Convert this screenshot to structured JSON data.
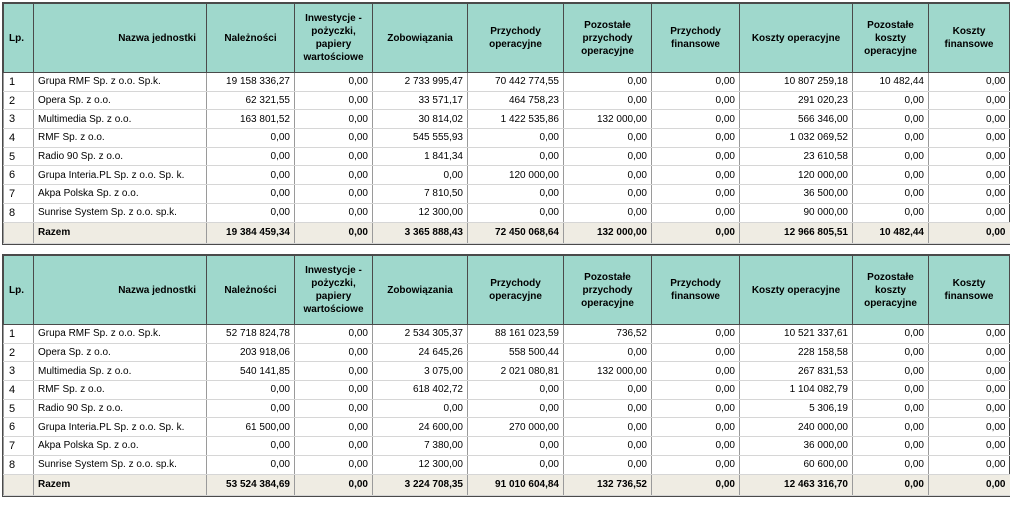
{
  "headers": {
    "lp": "Lp.",
    "name": "Nazwa jednostki",
    "c1": "Należności",
    "c2": "Inwestycje - pożyczki, papiery wartościowe",
    "c3": "Zobowiązania",
    "c4": "Przychody operacyjne",
    "c5": "Pozostałe przychody operacyjne",
    "c6": "Przychody finansowe",
    "c7": "Koszty operacyjne",
    "c8": "Pozostałe koszty operacyjne",
    "c9": "Koszty finansowe"
  },
  "tables": [
    {
      "rows": [
        {
          "lp": "1",
          "name": "Grupa RMF Sp. z o.o. Sp.k.",
          "v": [
            "19 158 336,27",
            "0,00",
            "2 733 995,47",
            "70 442 774,55",
            "0,00",
            "0,00",
            "10 807 259,18",
            "10 482,44",
            "0,00"
          ]
        },
        {
          "lp": "2",
          "name": "Opera Sp. z o.o.",
          "v": [
            "62 321,55",
            "0,00",
            "33 571,17",
            "464 758,23",
            "0,00",
            "0,00",
            "291 020,23",
            "0,00",
            "0,00"
          ]
        },
        {
          "lp": "3",
          "name": "Multimedia Sp. z o.o.",
          "v": [
            "163 801,52",
            "0,00",
            "30 814,02",
            "1 422 535,86",
            "132 000,00",
            "0,00",
            "566 346,00",
            "0,00",
            "0,00"
          ]
        },
        {
          "lp": "4",
          "name": "RMF Sp. z o.o.",
          "v": [
            "0,00",
            "0,00",
            "545 555,93",
            "0,00",
            "0,00",
            "0,00",
            "1 032 069,52",
            "0,00",
            "0,00"
          ]
        },
        {
          "lp": "5",
          "name": "Radio 90 Sp. z o.o.",
          "v": [
            "0,00",
            "0,00",
            "1 841,34",
            "0,00",
            "0,00",
            "0,00",
            "23 610,58",
            "0,00",
            "0,00"
          ]
        },
        {
          "lp": "6",
          "name": "Grupa Interia.PL Sp. z o.o. Sp. k.",
          "v": [
            "0,00",
            "0,00",
            "0,00",
            "120 000,00",
            "0,00",
            "0,00",
            "120 000,00",
            "0,00",
            "0,00"
          ]
        },
        {
          "lp": "7",
          "name": "Akpa Polska Sp. z o.o.",
          "v": [
            "0,00",
            "0,00",
            "7 810,50",
            "0,00",
            "0,00",
            "0,00",
            "36 500,00",
            "0,00",
            "0,00"
          ]
        },
        {
          "lp": "8",
          "name": "Sunrise System Sp. z o.o. sp.k.",
          "v": [
            "0,00",
            "0,00",
            "12 300,00",
            "0,00",
            "0,00",
            "0,00",
            "90 000,00",
            "0,00",
            "0,00"
          ]
        }
      ],
      "total": {
        "label": "Razem",
        "v": [
          "19 384 459,34",
          "0,00",
          "3 365 888,43",
          "72 450 068,64",
          "132 000,00",
          "0,00",
          "12 966 805,51",
          "10 482,44",
          "0,00"
        ]
      }
    },
    {
      "rows": [
        {
          "lp": "1",
          "name": "Grupa RMF Sp. z o.o. Sp.k.",
          "v": [
            "52 718 824,78",
            "0,00",
            "2 534 305,37",
            "88 161 023,59",
            "736,52",
            "0,00",
            "10 521 337,61",
            "0,00",
            "0,00"
          ]
        },
        {
          "lp": "2",
          "name": "Opera Sp. z o.o.",
          "v": [
            "203 918,06",
            "0,00",
            "24 645,26",
            "558 500,44",
            "0,00",
            "0,00",
            "228 158,58",
            "0,00",
            "0,00"
          ]
        },
        {
          "lp": "3",
          "name": "Multimedia Sp. z o.o.",
          "v": [
            "540 141,85",
            "0,00",
            "3 075,00",
            "2 021 080,81",
            "132 000,00",
            "0,00",
            "267 831,53",
            "0,00",
            "0,00"
          ]
        },
        {
          "lp": "4",
          "name": "RMF Sp. z o.o.",
          "v": [
            "0,00",
            "0,00",
            "618 402,72",
            "0,00",
            "0,00",
            "0,00",
            "1 104 082,79",
            "0,00",
            "0,00"
          ]
        },
        {
          "lp": "5",
          "name": "Radio 90 Sp. z o.o.",
          "v": [
            "0,00",
            "0,00",
            "0,00",
            "0,00",
            "0,00",
            "0,00",
            "5 306,19",
            "0,00",
            "0,00"
          ]
        },
        {
          "lp": "6",
          "name": "Grupa Interia.PL Sp. z o.o. Sp. k.",
          "v": [
            "61 500,00",
            "0,00",
            "24 600,00",
            "270 000,00",
            "0,00",
            "0,00",
            "240 000,00",
            "0,00",
            "0,00"
          ]
        },
        {
          "lp": "7",
          "name": "Akpa Polska Sp. z o.o.",
          "v": [
            "0,00",
            "0,00",
            "7 380,00",
            "0,00",
            "0,00",
            "0,00",
            "36 000,00",
            "0,00",
            "0,00"
          ]
        },
        {
          "lp": "8",
          "name": "Sunrise System Sp. z o.o. sp.k.",
          "v": [
            "0,00",
            "0,00",
            "12 300,00",
            "0,00",
            "0,00",
            "0,00",
            "60 600,00",
            "0,00",
            "0,00"
          ]
        }
      ],
      "total": {
        "label": "Razem",
        "v": [
          "53 524 384,69",
          "0,00",
          "3 224 708,35",
          "91 010 604,84",
          "132 736,52",
          "0,00",
          "12 463 316,70",
          "0,00",
          "0,00"
        ]
      }
    }
  ]
}
